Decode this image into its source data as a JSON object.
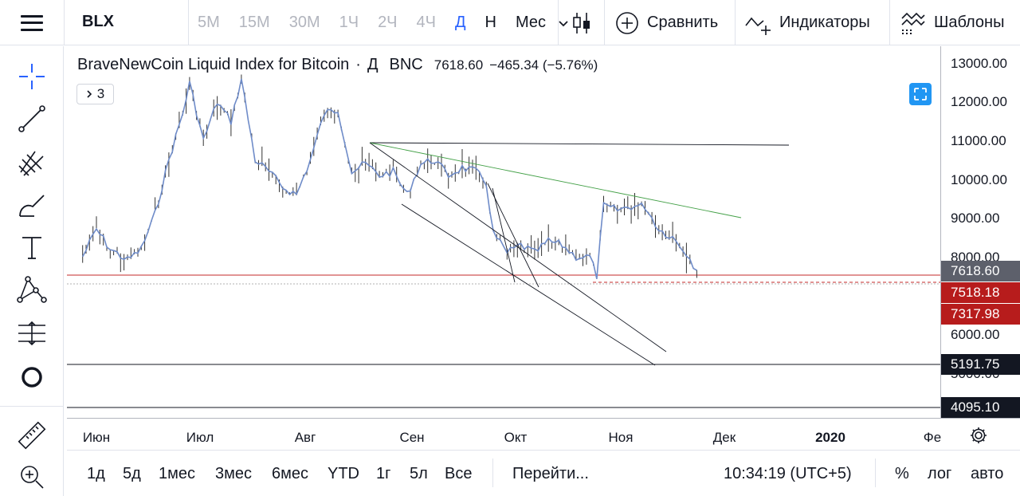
{
  "topbar": {
    "symbol": "BLX",
    "intervals": [
      {
        "label": "5М",
        "state": "disabled"
      },
      {
        "label": "15М",
        "state": "disabled"
      },
      {
        "label": "30М",
        "state": "disabled"
      },
      {
        "label": "1Ч",
        "state": "disabled"
      },
      {
        "label": "2Ч",
        "state": "disabled"
      },
      {
        "label": "4Ч",
        "state": "disabled"
      },
      {
        "label": "Д",
        "state": "active"
      },
      {
        "label": "Н",
        "state": "normal"
      },
      {
        "label": "Мес",
        "state": "normal"
      }
    ],
    "compare_label": "Сравнить",
    "indicators_label": "Индикаторы",
    "templates_label": "Шаблоны"
  },
  "left_tools": [
    "crosshair-icon",
    "trend-line-icon",
    "pitchfork-icon",
    "brush-icon",
    "text-icon",
    "pattern-icon",
    "forecast-icon",
    "circle-icon",
    "ruler-icon",
    "zoom-in-icon"
  ],
  "legend": {
    "name": "BraveNewCoin Liquid Index for Bitcoin",
    "separator": "·",
    "timeframe": "Д",
    "exchange": "BNC",
    "price": "7618.60",
    "change": "−465.34 (−5.76%)",
    "indicator_count": "3"
  },
  "price_scale": {
    "ticks": [
      "13000.00",
      "12000.00",
      "11000.00",
      "10000.00",
      "9000.00",
      "8000.00",
      "6000.00",
      "5000.00"
    ],
    "labels": [
      {
        "value": "7618.60",
        "color": "#5d606b"
      },
      {
        "value": "7518.18",
        "color": "#b71c1c"
      },
      {
        "value": "7317.98",
        "color": "#b71c1c"
      },
      {
        "value": "5191.75",
        "color": "#131722"
      },
      {
        "value": "4095.10",
        "color": "#131722"
      }
    ]
  },
  "time_scale": {
    "ticks": [
      {
        "label": "Июн",
        "bold": false
      },
      {
        "label": "Июл",
        "bold": false
      },
      {
        "label": "Авг",
        "bold": false
      },
      {
        "label": "Сен",
        "bold": false
      },
      {
        "label": "Окт",
        "bold": false
      },
      {
        "label": "Ноя",
        "bold": false
      },
      {
        "label": "Дек",
        "bold": false
      },
      {
        "label": "2020",
        "bold": true
      },
      {
        "label": "Фе",
        "bold": false
      }
    ]
  },
  "bottombar": {
    "ranges": [
      "1д",
      "5д",
      "1мес",
      "3мес",
      "6мес",
      "YTD",
      "1г",
      "5л",
      "Все"
    ],
    "goto_label": "Перейти...",
    "clock": "10:34:19 (UTC+5)",
    "percent_label": "%",
    "log_label": "лог",
    "auto_label": "авто"
  },
  "colors": {
    "accent": "#2962ff",
    "candle": "#333333",
    "ma_line": "#6f8cc9",
    "trend_green": "#43a047",
    "level_red": "#c62828"
  },
  "chart_data": {
    "type": "line",
    "symbol": "BLX",
    "timeframe": "D",
    "ylim": [
      4000,
      13400
    ],
    "x": [
      "2019-05-28",
      "2019-06-01",
      "2019-06-05",
      "2019-06-10",
      "2019-06-14",
      "2019-06-18",
      "2019-06-22",
      "2019-06-26",
      "2019-06-28",
      "2019-07-02",
      "2019-07-06",
      "2019-07-10",
      "2019-07-13",
      "2019-07-17",
      "2019-07-21",
      "2019-07-25",
      "2019-07-29",
      "2019-08-02",
      "2019-08-06",
      "2019-08-10",
      "2019-08-14",
      "2019-08-18",
      "2019-08-22",
      "2019-08-26",
      "2019-08-30",
      "2019-09-03",
      "2019-09-07",
      "2019-09-11",
      "2019-09-15",
      "2019-09-19",
      "2019-09-22",
      "2019-09-24",
      "2019-09-28",
      "2019-10-02",
      "2019-10-06",
      "2019-10-10",
      "2019-10-14",
      "2019-10-18",
      "2019-10-22",
      "2019-10-24",
      "2019-10-26",
      "2019-10-30",
      "2019-11-03",
      "2019-11-07",
      "2019-11-11",
      "2019-11-15",
      "2019-11-19",
      "2019-11-22"
    ],
    "y": [
      8000,
      8700,
      8200,
      7900,
      8200,
      9100,
      10500,
      11700,
      12500,
      11000,
      12000,
      11500,
      12600,
      10500,
      10200,
      9800,
      9600,
      10500,
      11700,
      11800,
      10200,
      10400,
      10100,
      10200,
      9600,
      10400,
      10500,
      10100,
      10300,
      10200,
      9900,
      8600,
      8100,
      8300,
      8100,
      8400,
      8300,
      8000,
      8000,
      7500,
      9300,
      9200,
      9300,
      9300,
      8700,
      8500,
      8100,
      7618.6
    ],
    "levels": [
      7518.18,
      7317.98,
      5191.75,
      4095.1
    ]
  }
}
